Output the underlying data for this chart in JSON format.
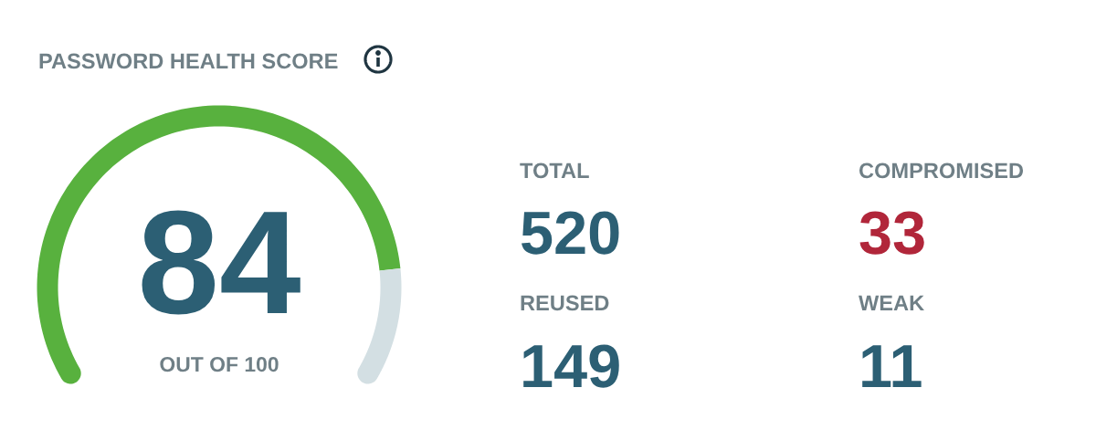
{
  "chart_data": [
    {
      "type": "donut",
      "title": "PASSWORD HEALTH SCORE",
      "categories": [
        null,
        null
      ],
      "values": [
        84,
        16
      ],
      "colors": [
        "#58b13e",
        "#d3dfe3"
      ],
      "value_labels": [
        "84",
        null
      ],
      "annotations": [
        "OUT OF 100"
      ]
    },
    {
      "type": "other",
      "categories": [
        "TOTAL",
        "COMPROMISED",
        "REUSED",
        "WEAK"
      ],
      "values": [
        520,
        33,
        149,
        11
      ],
      "colors": [
        "#2c5f74",
        "#b1263a",
        "#2c5f74",
        "#2c5f74"
      ],
      "data_labels": true
    }
  ]
}
